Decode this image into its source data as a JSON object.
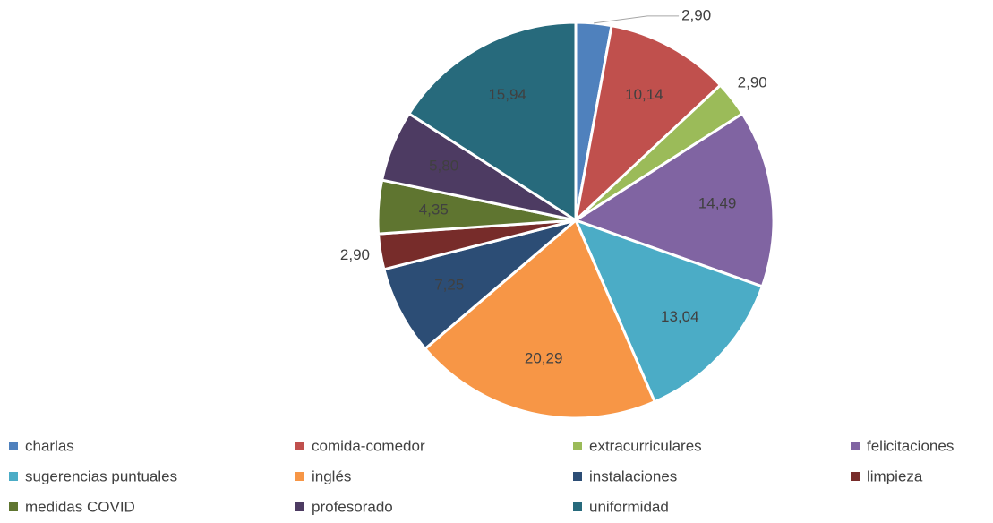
{
  "chart_data": {
    "type": "pie",
    "categories": [
      "charlas",
      "comida-comedor",
      "extracurriculares",
      "felicitaciones",
      "sugerencias puntuales",
      "inglés",
      "instalaciones",
      "limpieza",
      "medidas COVID",
      "profesorado",
      "uniformidad"
    ],
    "values": [
      2.9,
      10.14,
      2.9,
      14.49,
      13.04,
      20.29,
      7.25,
      2.9,
      4.35,
      5.8,
      15.94
    ],
    "value_labels": [
      "2,90",
      "10,14",
      "2,90",
      "14,49",
      "13,04",
      "20,29",
      "7,25",
      "2,90",
      "4,35",
      "5,80",
      "15,94"
    ],
    "colors": [
      "#4f81bd",
      "#c0504d",
      "#9bbb59",
      "#8064a2",
      "#4bacc6",
      "#f79646",
      "#2c4d75",
      "#772c2a",
      "#5f7530",
      "#4d3b62",
      "#276a7c"
    ],
    "legend": "bottom"
  }
}
